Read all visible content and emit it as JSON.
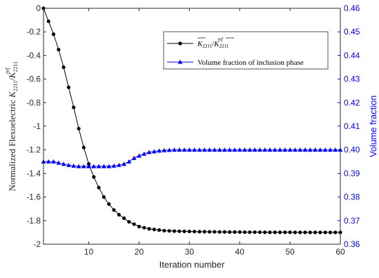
{
  "chart_data": {
    "type": "line",
    "title": "",
    "xlabel": "Iteration number",
    "ylabel_left": {
      "prefix": "Normalized Flexoelectric ",
      "num": "K",
      "num_sub": "2211",
      "den": "K",
      "den_sub": "2211",
      "den_sup": "ref"
    },
    "ylabel_right": "Volume fraction",
    "xlim": [
      1,
      60
    ],
    "ylim_left": [
      -2,
      0
    ],
    "ylim_right": [
      0.36,
      0.46
    ],
    "x_ticks": [
      10,
      20,
      30,
      40,
      50,
      60
    ],
    "y_left_ticks": [
      0,
      -0.2,
      -0.4,
      -0.6,
      -0.8,
      -1,
      -1.2,
      -1.4,
      -1.6,
      -1.8,
      -2
    ],
    "y_right_ticks": [
      0.46,
      0.45,
      0.44,
      0.43,
      0.42,
      0.41,
      0.4,
      0.39,
      0.38,
      0.37,
      0.36
    ],
    "grid": false,
    "legend_position": "upper-right",
    "x": [
      1,
      2,
      3,
      4,
      5,
      6,
      7,
      8,
      9,
      10,
      11,
      12,
      13,
      14,
      15,
      16,
      17,
      18,
      19,
      20,
      21,
      22,
      23,
      24,
      25,
      26,
      27,
      28,
      29,
      30,
      31,
      32,
      33,
      34,
      35,
      36,
      37,
      38,
      39,
      40,
      41,
      42,
      43,
      44,
      45,
      46,
      47,
      48,
      49,
      50,
      51,
      52,
      53,
      54,
      55,
      56,
      57,
      58,
      59,
      60
    ],
    "series": [
      {
        "name": "K2211/K2211ref",
        "axis": "left",
        "color": "#000000",
        "marker": "circle",
        "values": [
          0,
          -0.11,
          -0.22,
          -0.35,
          -0.5,
          -0.67,
          -0.84,
          -1.02,
          -1.18,
          -1.32,
          -1.43,
          -1.52,
          -1.6,
          -1.66,
          -1.71,
          -1.75,
          -1.78,
          -1.81,
          -1.83,
          -1.85,
          -1.86,
          -1.87,
          -1.875,
          -1.88,
          -1.885,
          -1.887,
          -1.889,
          -1.89,
          -1.891,
          -1.892,
          -1.893,
          -1.894,
          -1.894,
          -1.895,
          -1.895,
          -1.896,
          -1.896,
          -1.897,
          -1.897,
          -1.897,
          -1.898,
          -1.898,
          -1.898,
          -1.898,
          -1.899,
          -1.899,
          -1.899,
          -1.899,
          -1.899,
          -1.899,
          -1.9,
          -1.9,
          -1.9,
          -1.9,
          -1.9,
          -1.9,
          -1.9,
          -1.9,
          -1.9,
          -1.9
        ]
      },
      {
        "name": "Volume fraction of inclusion phase",
        "axis": "right",
        "color": "#0000ff",
        "marker": "triangle",
        "values": [
          0.395,
          0.395,
          0.395,
          0.3945,
          0.394,
          0.3935,
          0.3932,
          0.393,
          0.393,
          0.393,
          0.393,
          0.393,
          0.393,
          0.393,
          0.3932,
          0.3935,
          0.394,
          0.395,
          0.3965,
          0.3975,
          0.3983,
          0.399,
          0.3993,
          0.3996,
          0.3998,
          0.3999,
          0.4,
          0.4,
          0.4,
          0.4,
          0.4,
          0.4,
          0.4,
          0.4,
          0.4,
          0.4,
          0.4,
          0.4,
          0.4,
          0.4,
          0.4,
          0.4,
          0.4,
          0.4,
          0.4,
          0.4,
          0.4,
          0.4,
          0.4,
          0.4,
          0.4,
          0.4,
          0.4,
          0.4,
          0.4,
          0.4,
          0.4,
          0.4,
          0.4,
          0.4
        ]
      }
    ],
    "legend": {
      "entry1": {
        "main": "K",
        "sub": "2211",
        "den": "K",
        "den_sub": "2211",
        "den_sup": "ref"
      },
      "entry2": "Volume fraction of inclusion phase"
    },
    "colors": {
      "left_axis": "#000000",
      "right_axis": "#0000ff"
    }
  }
}
